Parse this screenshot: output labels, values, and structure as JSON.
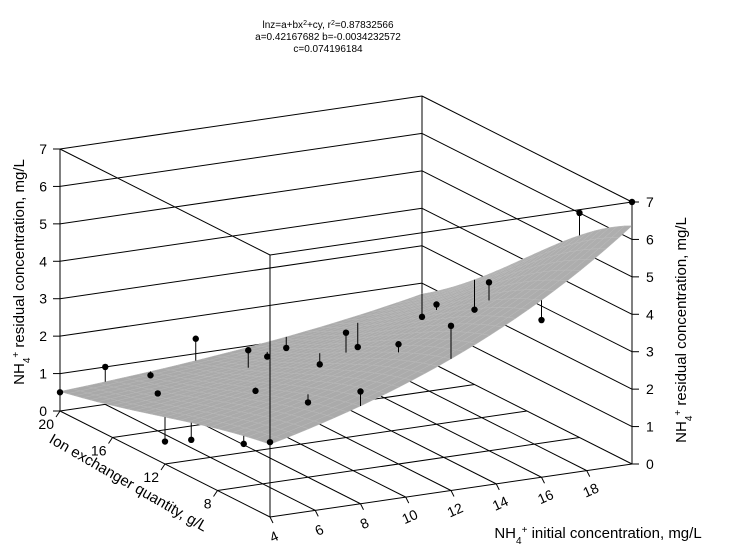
{
  "chart_data": {
    "type": "surface",
    "title_lines": [
      "lnz=a+bx2+cy, r2=0.87832566",
      "a=0.42167682 b=-0.0034232572",
      "c=0.074196184"
    ],
    "equation": {
      "form": "lnz=a+bx2+cy",
      "r2": 0.87832566,
      "a": 0.42167682,
      "b": -0.0034232572,
      "c": 0.074196184
    },
    "xlabel": "Ion exchanger quantity, g/L",
    "ylabel": "NH4+ initial concentration, mg/L",
    "zlabel": "NH4+ residual concentration, mg/L",
    "xticks": [
      "8",
      "12",
      "16",
      "20"
    ],
    "yticks": [
      "4",
      "6",
      "8",
      "10",
      "12",
      "14",
      "16",
      "18"
    ],
    "zticks": [
      "0",
      "1",
      "2",
      "3",
      "4",
      "5",
      "6",
      "7"
    ],
    "xlim": [
      4,
      20
    ],
    "ylim": [
      4,
      20
    ],
    "zlim": [
      0,
      7
    ],
    "grid": true,
    "surface_color": "#8c8c8c",
    "marker_color": "#000000",
    "points": [
      {
        "x": 4,
        "y": 4,
        "z": 2.0
      },
      {
        "x": 4,
        "y": 8,
        "z": 3.0
      },
      {
        "x": 4,
        "y": 12,
        "z": 4.4
      },
      {
        "x": 4,
        "y": 20,
        "z": 7.0
      },
      {
        "x": 8,
        "y": 8,
        "z": 2.0
      },
      {
        "x": 8,
        "y": 12,
        "z": 3.2
      },
      {
        "x": 8,
        "y": 20,
        "z": 6.0
      },
      {
        "x": 12,
        "y": 8,
        "z": 1.6
      },
      {
        "x": 12,
        "y": 12,
        "z": 2.8
      },
      {
        "x": 16,
        "y": 6,
        "z": 1.0
      },
      {
        "x": 16,
        "y": 10,
        "z": 1.8
      },
      {
        "x": 16,
        "y": 20,
        "z": 2.0
      },
      {
        "x": 20,
        "y": 6,
        "z": 1.0
      },
      {
        "x": 20,
        "y": 10,
        "z": 1.4
      },
      {
        "x": 20,
        "y": 20,
        "z": 1.1
      },
      {
        "x": 4,
        "y": 16,
        "z": 4.2
      },
      {
        "x": 6,
        "y": 4,
        "z": 1.6
      },
      {
        "x": 10,
        "y": 4,
        "z": 1.0
      },
      {
        "x": 12,
        "y": 4,
        "z": 0.6
      },
      {
        "x": 8,
        "y": 16,
        "z": 4.5
      },
      {
        "x": 12,
        "y": 16,
        "z": 3.2
      },
      {
        "x": 14,
        "y": 12,
        "z": 1.6
      },
      {
        "x": 18,
        "y": 12,
        "z": 1.1
      },
      {
        "x": 18,
        "y": 16,
        "z": 1.0
      },
      {
        "x": 20,
        "y": 4,
        "z": 0.5
      },
      {
        "x": 20,
        "y": 8,
        "z": 0.6
      },
      {
        "x": 20,
        "y": 14,
        "z": 0.8
      }
    ]
  }
}
